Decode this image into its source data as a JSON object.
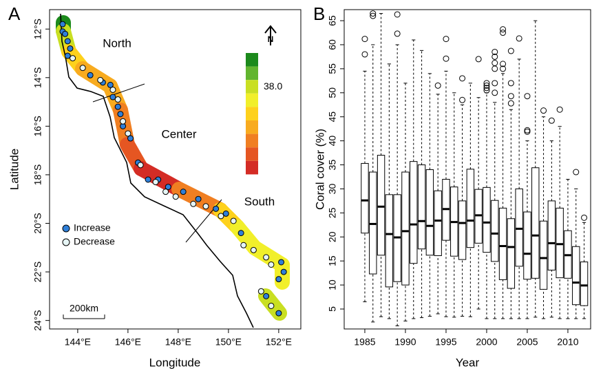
{
  "chart_data": [
    {
      "type": "map",
      "panel_label": "A",
      "xlabel": "Longitude",
      "ylabel": "Latitude",
      "xlim": [
        142.88,
        152.88
      ],
      "ylim": [
        -24.35,
        -11.2
      ],
      "xticks": [
        {
          "value": 144,
          "label": "144°E"
        },
        {
          "value": 146,
          "label": "146°E"
        },
        {
          "value": 148,
          "label": "148°E"
        },
        {
          "value": 150,
          "label": "150°E"
        },
        {
          "value": 152,
          "label": "152°E"
        }
      ],
      "yticks": [
        {
          "value": -12,
          "label": "12°S"
        },
        {
          "value": -14,
          "label": "14°S"
        },
        {
          "value": -16,
          "label": "16°S"
        },
        {
          "value": -18,
          "label": "18°S"
        },
        {
          "value": -20,
          "label": "20°S"
        },
        {
          "value": -22,
          "label": "22°S"
        },
        {
          "value": -24,
          "label": "24°S"
        }
      ],
      "regions": [
        "North",
        "Center",
        "South"
      ],
      "north_label": "N",
      "scale_label": "200km",
      "colorbar": [
        {
          "value": 46.8,
          "color": "#1c8a1c"
        },
        {
          "value": 42.4,
          "color": "#62b52f"
        },
        {
          "value": 38,
          "label": "38.0",
          "color": "#c9df22"
        },
        {
          "value": 33.6,
          "color": "#f1ef2a"
        },
        {
          "value": 29.2,
          "color": "#fed11c"
        },
        {
          "value": 24.7,
          "color": "#f8ab1f"
        },
        {
          "value": 20.3,
          "color": "#f07f22"
        },
        {
          "value": 15.9,
          "color": "#e55622"
        },
        {
          "value": 11.5,
          "color": "#d42c25"
        }
      ],
      "series": [
        {
          "name": "Increase",
          "color": "#2f7fd8",
          "x": [
            143.4,
            143.4,
            143.5,
            143.6,
            143.7,
            143.6,
            144.5,
            145.0,
            145.3,
            145.4,
            145.6,
            145.7,
            145.8,
            146.1,
            146.4,
            146.8,
            147.2,
            147.6,
            148.2,
            148.8,
            149.5,
            149.9,
            150.5,
            151.5,
            152.0,
            152.1,
            152.2,
            152.0
          ],
          "y": [
            -11.8,
            -12.1,
            -12.2,
            -12.5,
            -12.8,
            -13.1,
            -13.9,
            -14.2,
            -14.3,
            -14.8,
            -15.2,
            -15.5,
            -16.0,
            -16.5,
            -17.5,
            -18.2,
            -18.2,
            -18.5,
            -18.7,
            -19.0,
            -19.4,
            -19.6,
            -20.4,
            -23.0,
            -23.7,
            -21.6,
            -22.0,
            -22.3
          ]
        },
        {
          "name": "Decrease",
          "color": "#e6f5f5",
          "x": [
            143.8,
            144.2,
            144.9,
            145.4,
            145.6,
            145.8,
            146.0,
            146.5,
            147.1,
            147.5,
            147.9,
            148.6,
            149.1,
            149.7,
            150.2,
            150.6,
            151.0,
            151.5,
            151.7,
            151.3,
            151.7
          ],
          "y": [
            -13.2,
            -13.6,
            -14.1,
            -14.5,
            -14.9,
            -15.8,
            -16.3,
            -17.6,
            -18.3,
            -18.7,
            -18.9,
            -19.2,
            -19.3,
            -19.7,
            -19.9,
            -20.9,
            -21.1,
            -21.4,
            -21.7,
            -22.8,
            -23.4
          ]
        }
      ]
    },
    {
      "type": "box",
      "panel_label": "B",
      "xlabel": "Year",
      "ylabel": "Coral cover (%)",
      "xlim": [
        1982.46,
        2012.8
      ],
      "ylim": [
        0.85,
        67.3
      ],
      "xticks": [
        1985,
        1990,
        1995,
        2000,
        2005,
        2010
      ],
      "yticks": [
        5,
        10,
        15,
        20,
        25,
        30,
        35,
        40,
        45,
        50,
        55,
        60,
        65
      ],
      "x": [
        1985,
        1986,
        1987,
        1988,
        1989,
        1990,
        1991,
        1992,
        1993,
        1994,
        1995,
        1996,
        1997,
        1998,
        1999,
        2000,
        2001,
        2002,
        2003,
        2004,
        2005,
        2006,
        2007,
        2008,
        2009,
        2010,
        2011,
        2012
      ],
      "whislo": [
        6.5,
        2.3,
        3.4,
        3,
        1.5,
        2.5,
        3,
        3.2,
        3.5,
        4,
        3.4,
        3.3,
        3.5,
        3.4,
        5,
        3,
        3,
        3,
        3,
        3,
        3,
        3.3,
        3,
        3.3,
        3,
        3,
        3,
        3
      ],
      "q1": [
        20.8,
        12.3,
        16.2,
        9.6,
        10.7,
        10,
        14.5,
        17.5,
        16.2,
        16.1,
        19.3,
        16,
        15.3,
        17.8,
        18.7,
        16.8,
        14.9,
        11.1,
        9.3,
        13.9,
        11.2,
        11.4,
        9.1,
        13.1,
        11.5,
        11.4,
        5.9,
        5.7
      ],
      "med": [
        27.6,
        22.7,
        26.3,
        20.6,
        19.9,
        21.2,
        22.6,
        23.3,
        22.3,
        23.4,
        25.8,
        23.1,
        22.9,
        23.4,
        24.5,
        23,
        20.7,
        18.1,
        17.9,
        21.7,
        16.5,
        20.3,
        15.6,
        18.7,
        18.5,
        16.2,
        10.5,
        9.9
      ],
      "q3": [
        35.3,
        33.5,
        37,
        28.8,
        28.8,
        33.5,
        35.7,
        35,
        34,
        29.6,
        32,
        30.4,
        27.5,
        34.1,
        29.9,
        30.3,
        27.6,
        26,
        23.8,
        30,
        25.2,
        34.4,
        23.3,
        27.5,
        26,
        21.3,
        18,
        14.8
      ],
      "whishi": [
        54.5,
        60,
        66.5,
        56,
        60,
        52,
        61,
        58.8,
        54,
        49.7,
        54.5,
        50,
        47.5,
        52,
        49,
        50,
        48,
        54,
        46.5,
        57,
        40,
        65,
        45,
        40,
        43,
        32,
        30,
        23
      ],
      "outliers": [
        [
          58,
          61.2
        ],
        [
          66,
          66.5
        ],
        [],
        [],
        [
          62.3,
          66.3
        ],
        [],
        [],
        [],
        [],
        [
          51.5
        ],
        [
          57.1,
          61.2
        ],
        [],
        [
          48.5,
          53
        ],
        [],
        [
          57
        ],
        [
          50.5,
          51,
          51.5,
          52
        ],
        [
          50,
          52,
          55,
          56.2,
          57.5,
          58.5
        ],
        [
          55,
          56,
          62.5,
          63.2
        ],
        [
          47.8,
          49.3,
          52,
          58.7
        ],
        [
          61.3
        ],
        [
          41.9,
          42.2,
          49.3
        ],
        [],
        [
          46.3
        ],
        [
          44.2
        ],
        [
          46.5
        ],
        [],
        [
          33.5
        ],
        [
          24
        ]
      ]
    }
  ]
}
